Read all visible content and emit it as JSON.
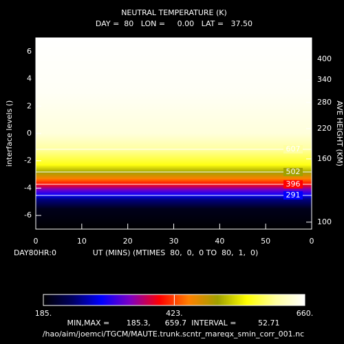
{
  "chart_data": {
    "type": "contour",
    "title": "NEUTRAL TEMPERATURE (K)",
    "subtitle": "DAY =  80   LON =     0.00   LAT =   37.50",
    "x_label": "UT (MINS) (MTIMES  80,  0,  0 TO  80,  1,  0)",
    "y_label": "interface levels ()",
    "time_label": "DAY80HR:0",
    "xlim": [
      0,
      60
    ],
    "xticks": [
      0,
      10,
      20,
      30,
      40,
      50,
      {
        "value": 60,
        "label": "0"
      }
    ],
    "ylim": [
      -7,
      7
    ],
    "yticks": [
      -6,
      -4,
      -2,
      0,
      2,
      4,
      6
    ],
    "height_axis": {
      "label": "AVE HEIGHT (KM)",
      "ticks": [
        100,
        160,
        220,
        280,
        340,
        400
      ],
      "tick_levels": [
        -6.49,
        -1.86,
        0.35,
        2.27,
        3.93,
        5.44
      ]
    },
    "profile": {
      "levels": [
        -7,
        -5.5,
        -4.8,
        -4.5,
        -4.1,
        -3.72,
        -3.3,
        -2.82,
        -2.3,
        -1.16,
        0,
        3,
        7
      ],
      "temperature": [
        185.3,
        200,
        250,
        291,
        340,
        396,
        450,
        502,
        560,
        607,
        640,
        655,
        659.7
      ]
    },
    "contours": {
      "values": [
        291,
        396,
        502,
        607
      ],
      "levels": [
        -4.53,
        -3.72,
        -2.82,
        -1.16
      ]
    },
    "colorbar": {
      "range": [
        185,
        660
      ],
      "colors": [
        "#000000",
        "#000060",
        "#0000ff",
        "#8000c0",
        "#ff0000",
        "#ff8000",
        "#a0a000",
        "#ffff00",
        "#ffffa0",
        "#ffffff"
      ],
      "ticks": [
        {
          "value": 185,
          "label": "185."
        },
        {
          "value": 423,
          "label": "423."
        },
        {
          "value": 660,
          "label": "660."
        }
      ]
    },
    "stats": "MIN,MAX =       185.3,      659.7  INTERVAL =         52.71",
    "file": "/hao/aim/joemci/TGCM/MAUTE.trunk.scntr_mareqx_smin_corr_001.nc"
  }
}
